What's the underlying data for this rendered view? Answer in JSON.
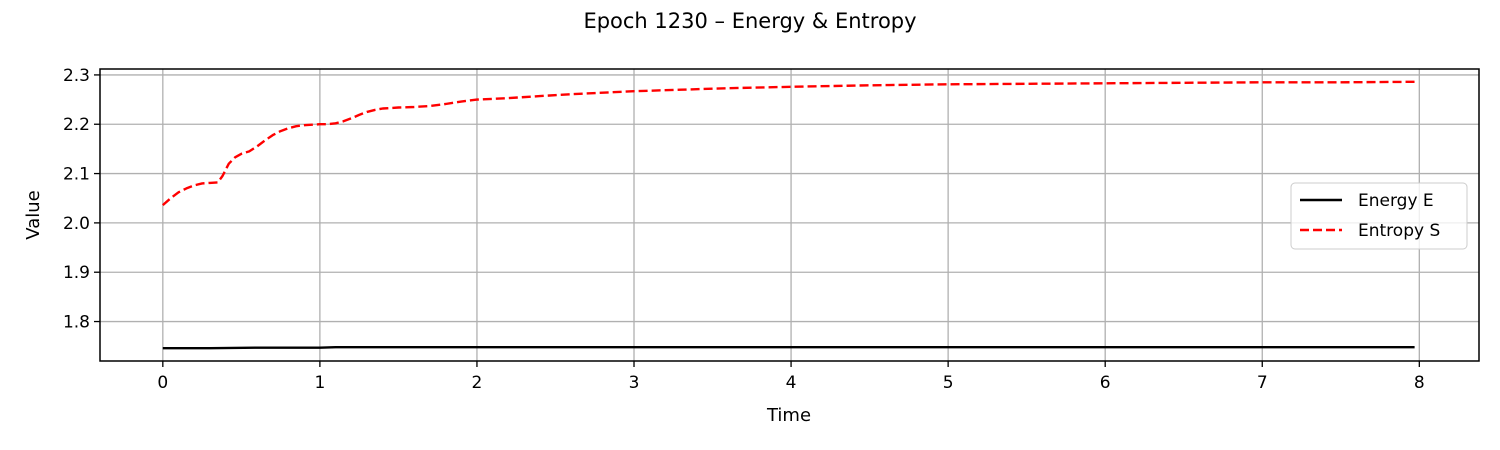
{
  "chart_data": {
    "type": "line",
    "title": "Epoch 1230 – Energy & Entropy",
    "xlabel": "Time",
    "ylabel": "Value",
    "xlim": [
      -0.4,
      8.38
    ],
    "ylim": [
      1.72,
      2.312
    ],
    "xticks": [
      0,
      1,
      2,
      3,
      4,
      5,
      6,
      7,
      8
    ],
    "xtick_labels": [
      "0",
      "1",
      "2",
      "3",
      "4",
      "5",
      "6",
      "7",
      "8"
    ],
    "yticks": [
      1.8,
      1.9,
      2.0,
      2.1,
      2.2,
      2.3
    ],
    "ytick_labels": [
      "1.8",
      "1.9",
      "2.0",
      "2.1",
      "2.2",
      "2.3"
    ],
    "grid": true,
    "legend_position": "center-right",
    "series": [
      {
        "name": "Energy E",
        "color": "#000000",
        "style": "solid",
        "x": [
          0,
          0.3,
          0.6,
          1.0,
          1.1,
          2.0,
          3.0,
          4.0,
          5.0,
          6.0,
          7.0,
          7.97
        ],
        "y": [
          1.746,
          1.746,
          1.747,
          1.747,
          1.748,
          1.748,
          1.748,
          1.748,
          1.748,
          1.748,
          1.748,
          1.748
        ]
      },
      {
        "name": "Entropy S",
        "color": "#ff0000",
        "style": "dashed",
        "x": [
          0,
          0.05,
          0.1,
          0.15,
          0.2,
          0.25,
          0.3,
          0.35,
          0.38,
          0.42,
          0.46,
          0.5,
          0.55,
          0.6,
          0.65,
          0.7,
          0.75,
          0.8,
          0.85,
          0.9,
          0.95,
          1.0,
          1.05,
          1.1,
          1.15,
          1.2,
          1.25,
          1.3,
          1.35,
          1.4,
          1.5,
          1.6,
          1.7,
          1.8,
          1.9,
          2.0,
          2.2,
          2.4,
          2.6,
          2.8,
          3.0,
          3.3,
          3.6,
          4.0,
          4.5,
          5.0,
          5.5,
          6.0,
          6.5,
          7.0,
          7.5,
          7.97
        ],
        "y": [
          2.036,
          2.05,
          2.062,
          2.07,
          2.076,
          2.08,
          2.081,
          2.082,
          2.095,
          2.12,
          2.133,
          2.14,
          2.145,
          2.155,
          2.167,
          2.178,
          2.186,
          2.192,
          2.196,
          2.198,
          2.199,
          2.2,
          2.2,
          2.202,
          2.206,
          2.212,
          2.219,
          2.225,
          2.229,
          2.232,
          2.234,
          2.235,
          2.237,
          2.241,
          2.246,
          2.25,
          2.253,
          2.257,
          2.261,
          2.264,
          2.267,
          2.27,
          2.273,
          2.276,
          2.279,
          2.281,
          2.282,
          2.283,
          2.284,
          2.285,
          2.285,
          2.286
        ]
      }
    ]
  }
}
